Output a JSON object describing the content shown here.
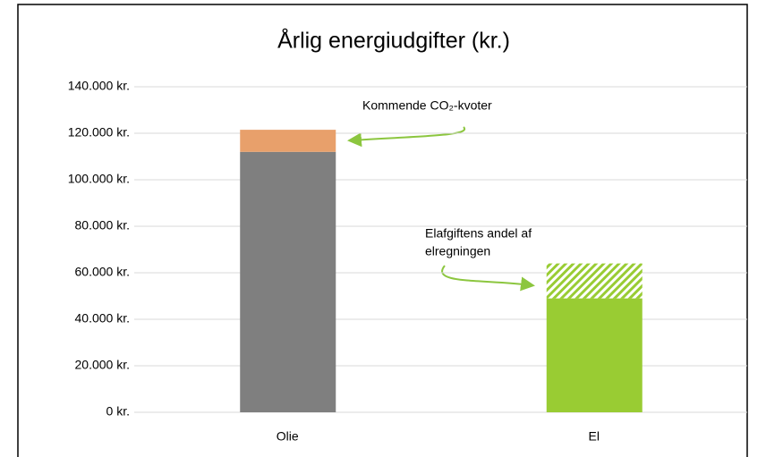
{
  "chart_data": {
    "type": "stacked_bar",
    "title": "Årlig energiudgifter (kr.)",
    "categories": [
      "Olie",
      "El"
    ],
    "series": [
      {
        "colors": [
          "#7f7f7f",
          "#99cc33"
        ],
        "patterns": [
          "solid",
          "solid"
        ],
        "values": [
          112000,
          49000
        ]
      },
      {
        "colors": [
          "#e8a06b",
          "#99cc33"
        ],
        "patterns": [
          "solid",
          "hatch"
        ],
        "values": [
          9500,
          15000
        ]
      }
    ],
    "ylim": [
      0,
      140000
    ],
    "yticks": [
      {
        "value": 0,
        "label": "0 kr."
      },
      {
        "value": 20000,
        "label": "20.000 kr."
      },
      {
        "value": 40000,
        "label": "40.000 kr."
      },
      {
        "value": 60000,
        "label": "60.000 kr."
      },
      {
        "value": 80000,
        "label": "80.000 kr."
      },
      {
        "value": 100000,
        "label": "100.000 kr."
      },
      {
        "value": 120000,
        "label": "120.000 kr."
      },
      {
        "value": 140000,
        "label": "140.000 kr."
      }
    ],
    "grid": true,
    "annotations": [
      {
        "lines": [
          "Kommende CO₂-kvoter"
        ]
      },
      {
        "lines": [
          "Elafgiftens andel af",
          "elregningen"
        ]
      }
    ]
  }
}
